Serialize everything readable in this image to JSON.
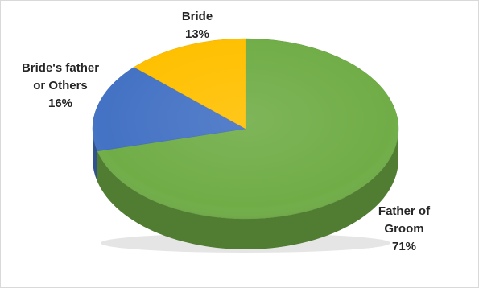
{
  "chart_data": {
    "type": "pie",
    "title": "",
    "slices": [
      {
        "category_lines": [
          "Father of",
          "Groom"
        ],
        "percent_label": "71%",
        "value": 71,
        "color": "#70ad47"
      },
      {
        "category_lines": [
          "Bride's father",
          "or Others"
        ],
        "percent_label": "16%",
        "value": 16,
        "color": "#4472c4"
      },
      {
        "category_lines": [
          "Bride"
        ],
        "percent_label": "13%",
        "value": 13,
        "color": "#ffc000"
      }
    ],
    "legend": "none"
  }
}
